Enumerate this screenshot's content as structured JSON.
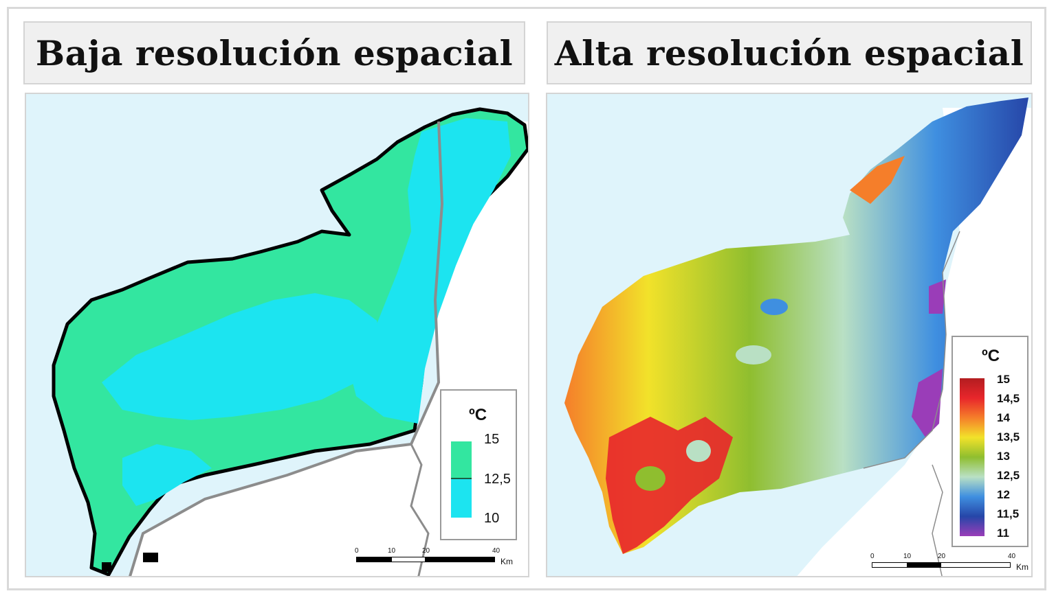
{
  "panels": {
    "left": {
      "title": "Baja resolución espacial"
    },
    "right": {
      "title": "Alta resolución espacial"
    }
  },
  "legend_low": {
    "unit": "ºC",
    "labels": [
      "15",
      "12,5",
      "10"
    ],
    "colors": {
      "high": "#33e6a0",
      "low": "#1ce4f0"
    }
  },
  "legend_high": {
    "unit": "ºC",
    "labels": [
      "15",
      "14,5",
      "14",
      "13,5",
      "13",
      "12,5",
      "12",
      "11,5",
      "11"
    ],
    "colors": [
      "#b31d20",
      "#e8262b",
      "#f57e2a",
      "#f2e22a",
      "#8fbe2f",
      "#b9e0c4",
      "#3f8fe0",
      "#2646a8",
      "#9a3db8"
    ]
  },
  "scalebar": {
    "ticks": [
      "0",
      "10",
      "20",
      "40"
    ],
    "unit": "Km"
  },
  "colors": {
    "sea": "#dff4fb",
    "land_outside": "#ffffff",
    "border": "#8c8c8c"
  }
}
